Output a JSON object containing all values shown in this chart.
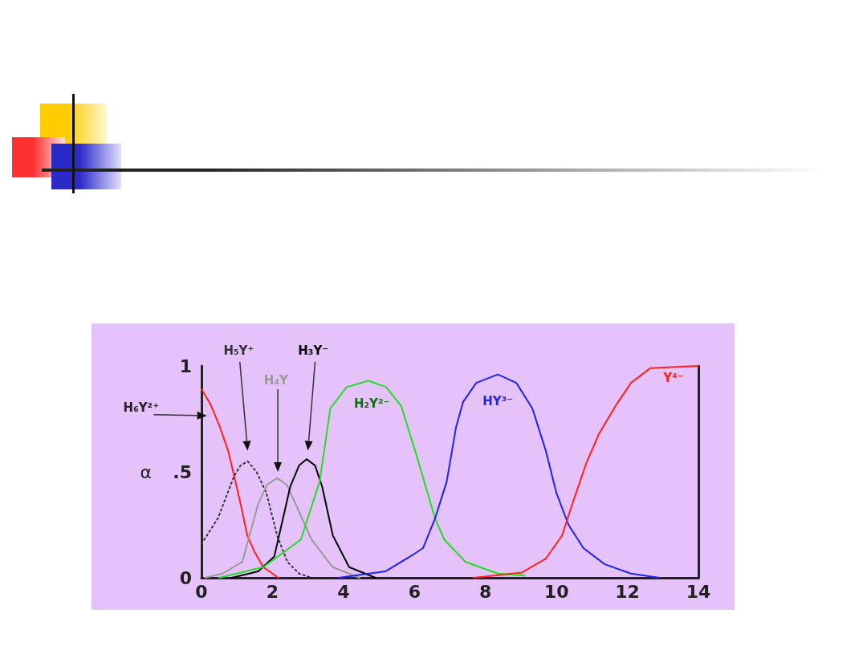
{
  "chart_data": {
    "type": "line",
    "ylabel": "α",
    "xlim": [
      0,
      14
    ],
    "xticks": [
      0,
      2,
      4,
      6,
      8,
      10,
      12,
      14
    ],
    "ylim": [
      0,
      1
    ],
    "yticks": [
      0,
      {
        "value": 0.5,
        "label": ".5"
      },
      1
    ],
    "grid": false,
    "legend": false,
    "marker": "none",
    "line_style": "solid",
    "series": [
      {
        "name": "H₆Y²⁺",
        "color": "#ff2020",
        "x": [
          0,
          0.25,
          0.5,
          0.75,
          0.92,
          1.1,
          1.29,
          1.5,
          1.74,
          2.0,
          2.16
        ],
        "values": [
          0.89,
          0.82,
          0.72,
          0.6,
          0.48,
          0.35,
          0.2,
          0.12,
          0.05,
          0.02,
          0
        ]
      },
      {
        "name": "H₅Y⁺",
        "color": "#333333",
        "line_style": "dotted",
        "x": [
          0,
          0.46,
          0.92,
          1.1,
          1.3,
          1.55,
          1.83,
          2.13,
          2.42,
          2.75,
          3.1
        ],
        "values": [
          0.16,
          0.28,
          0.48,
          0.53,
          0.55,
          0.5,
          0.4,
          0.2,
          0.075,
          0.02,
          0
        ]
      },
      {
        "name": "H₄Y",
        "color": "#999999",
        "x": [
          0.1,
          0.6,
          1.15,
          1.6,
          1.85,
          2.13,
          2.4,
          2.65,
          3.1,
          3.7,
          4.45
        ],
        "values": [
          0,
          0.02,
          0.075,
          0.35,
          0.44,
          0.47,
          0.44,
          0.35,
          0.18,
          0.05,
          0
        ]
      },
      {
        "name": "H₃Y⁻",
        "color": "#000000",
        "x": [
          0.85,
          1.6,
          2.05,
          2.5,
          2.75,
          2.96,
          3.2,
          3.4,
          3.7,
          4.16,
          4.9
        ],
        "values": [
          0,
          0.03,
          0.1,
          0.43,
          0.53,
          0.56,
          0.53,
          0.43,
          0.2,
          0.05,
          0
        ]
      },
      {
        "name": "H₂Y²⁻",
        "color": "#22dd22",
        "x": [
          0.5,
          1.74,
          2.8,
          3.33,
          3.63,
          4.09,
          4.7,
          5.2,
          5.63,
          6.09,
          6.58,
          6.84,
          7.44,
          8.35,
          9.1
        ],
        "values": [
          0,
          0.05,
          0.18,
          0.455,
          0.8,
          0.9,
          0.93,
          0.9,
          0.81,
          0.56,
          0.28,
          0.18,
          0.075,
          0.02,
          0.01
        ]
      },
      {
        "name": "HY³⁻",
        "color": "#2222ee",
        "x": [
          3.86,
          5.18,
          5.97,
          6.24,
          6.58,
          6.91,
          7.17,
          7.37,
          7.74,
          8.35,
          8.87,
          9.32,
          9.7,
          10.0,
          10.34,
          10.76,
          11.36,
          12.1,
          12.9
        ],
        "values": [
          0,
          0.03,
          0.11,
          0.14,
          0.28,
          0.455,
          0.71,
          0.83,
          0.92,
          0.96,
          0.92,
          0.8,
          0.6,
          0.4,
          0.25,
          0.14,
          0.064,
          0.02,
          0
        ]
      },
      {
        "name": "Y⁴⁻",
        "color": "#ff2020",
        "x": [
          7.67,
          9.03,
          9.7,
          10.16,
          10.45,
          10.84,
          11.2,
          11.66,
          12.1,
          12.65,
          14
        ],
        "values": [
          0,
          0.025,
          0.09,
          0.2,
          0.35,
          0.54,
          0.68,
          0.81,
          0.92,
          0.99,
          1
        ]
      }
    ]
  }
}
